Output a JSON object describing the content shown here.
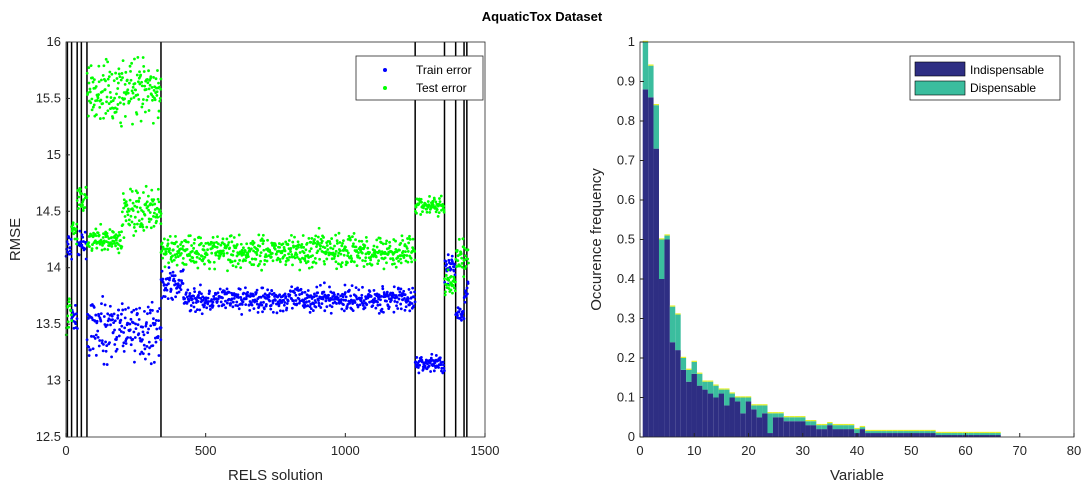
{
  "figure": {
    "title": "AquaticTox Dataset"
  },
  "chart_data": [
    {
      "type": "scatter",
      "xlabel": "RELS solution",
      "ylabel": "RMSE",
      "xlim": [
        0,
        1500
      ],
      "ylim": [
        12.5,
        16
      ],
      "xticks": [
        0,
        500,
        1000,
        1500
      ],
      "yticks": [
        12.5,
        13,
        13.5,
        14,
        14.5,
        15,
        15.5,
        16
      ],
      "legend_position": "top-right",
      "vertical_lines_x": [
        5,
        20,
        40,
        55,
        75,
        340,
        1250,
        1355,
        1395,
        1425,
        1435
      ],
      "series": [
        {
          "name": "Train error",
          "color": "#0000ff",
          "segments": [
            {
              "x": [
                0,
                20
              ],
              "center": 14.15,
              "spread": 0.25
            },
            {
              "x": [
                20,
                40
              ],
              "center": 13.55,
              "spread": 0.15
            },
            {
              "x": [
                40,
                75
              ],
              "center": 14.2,
              "spread": 0.15
            },
            {
              "x": [
                75,
                340
              ],
              "center": 13.45,
              "spread": 0.35
            },
            {
              "x": [
                340,
                420
              ],
              "center": 13.85,
              "spread": 0.2
            },
            {
              "x": [
                420,
                1250
              ],
              "center": 13.72,
              "spread": 0.16
            },
            {
              "x": [
                1250,
                1355
              ],
              "center": 13.15,
              "spread": 0.12
            },
            {
              "x": [
                1355,
                1395
              ],
              "center": 14.0,
              "spread": 0.2
            },
            {
              "x": [
                1395,
                1425
              ],
              "center": 13.6,
              "spread": 0.1
            },
            {
              "x": [
                1425,
                1440
              ],
              "center": 13.8,
              "spread": 0.2
            }
          ]
        },
        {
          "name": "Test error",
          "color": "#00ff00",
          "segments": [
            {
              "x": [
                0,
                20
              ],
              "center": 13.6,
              "spread": 0.25
            },
            {
              "x": [
                20,
                40
              ],
              "center": 14.3,
              "spread": 0.2
            },
            {
              "x": [
                40,
                75
              ],
              "center": 14.6,
              "spread": 0.2
            },
            {
              "x": [
                75,
                200
              ],
              "center": 14.25,
              "spread": 0.15
            },
            {
              "x": [
                75,
                340
              ],
              "center": 15.55,
              "spread": 0.4
            },
            {
              "x": [
                200,
                340
              ],
              "center": 14.5,
              "spread": 0.3
            },
            {
              "x": [
                340,
                1250
              ],
              "center": 14.15,
              "spread": 0.22
            },
            {
              "x": [
                1250,
                1355
              ],
              "center": 14.55,
              "spread": 0.12
            },
            {
              "x": [
                1355,
                1395
              ],
              "center": 13.85,
              "spread": 0.15
            },
            {
              "x": [
                1395,
                1440
              ],
              "center": 14.1,
              "spread": 0.25
            }
          ]
        }
      ]
    },
    {
      "type": "bar",
      "stacked": true,
      "xlabel": "Variable",
      "ylabel": "Occurence frequency",
      "xlim": [
        0,
        80
      ],
      "ylim": [
        0,
        1
      ],
      "xticks": [
        0,
        10,
        20,
        30,
        40,
        50,
        60,
        70,
        80
      ],
      "yticks": [
        0,
        0.1,
        0.2,
        0.3,
        0.4,
        0.5,
        0.6,
        0.7,
        0.8,
        0.9,
        1
      ],
      "legend_position": "top-right",
      "x": [
        1,
        2,
        3,
        4,
        5,
        6,
        7,
        8,
        9,
        10,
        11,
        12,
        13,
        14,
        15,
        16,
        17,
        18,
        19,
        20,
        21,
        22,
        23,
        24,
        25,
        26,
        27,
        28,
        29,
        30,
        31,
        32,
        33,
        34,
        35,
        36,
        37,
        38,
        39,
        40,
        41,
        42,
        43,
        44,
        45,
        46,
        47,
        48,
        49,
        50,
        51,
        52,
        53,
        54,
        55,
        56,
        57,
        58,
        59,
        60,
        61,
        62,
        63,
        64,
        65,
        66,
        67,
        68,
        69,
        70,
        71,
        72,
        73,
        74,
        75,
        76,
        77,
        78,
        79,
        80
      ],
      "series": [
        {
          "name": "Indispensable",
          "color": "#2e2e83",
          "values": [
            0.88,
            0.86,
            0.73,
            0.4,
            0.5,
            0.24,
            0.22,
            0.17,
            0.14,
            0.16,
            0.13,
            0.12,
            0.11,
            0.1,
            0.11,
            0.08,
            0.1,
            0.09,
            0.06,
            0.09,
            0.07,
            0.05,
            0.06,
            0.01,
            0.05,
            0.05,
            0.04,
            0.04,
            0.04,
            0.04,
            0.03,
            0.03,
            0.02,
            0.02,
            0.03,
            0.02,
            0.02,
            0.02,
            0.02,
            0.01,
            0.02,
            0.01,
            0.01,
            0.01,
            0.01,
            0.01,
            0.01,
            0.01,
            0.01,
            0.01,
            0.01,
            0.01,
            0.01,
            0.01,
            0.005,
            0.005,
            0.005,
            0.005,
            0.005,
            0.005,
            0.005,
            0.005,
            0.005,
            0.005,
            0.005,
            0.005,
            0,
            0,
            0,
            0,
            0,
            0,
            0,
            0,
            0,
            0,
            0,
            0,
            0,
            0
          ]
        },
        {
          "name": "Dispensable",
          "color": "#3bbd9e",
          "values": [
            0.12,
            0.08,
            0.11,
            0.1,
            0.01,
            0.09,
            0.09,
            0.03,
            0.03,
            0.03,
            0.03,
            0.02,
            0.03,
            0.03,
            0.01,
            0.04,
            0.01,
            0.01,
            0.04,
            0.01,
            0.01,
            0.03,
            0.02,
            0.05,
            0.01,
            0.01,
            0.01,
            0.01,
            0.01,
            0.01,
            0.01,
            0.01,
            0.01,
            0.01,
            0.005,
            0.01,
            0.01,
            0.01,
            0.01,
            0.01,
            0.005,
            0.005,
            0.005,
            0.005,
            0.005,
            0.005,
            0.005,
            0.005,
            0.005,
            0.005,
            0.005,
            0.005,
            0.005,
            0.005,
            0.005,
            0.005,
            0.005,
            0.005,
            0.005,
            0.005,
            0.005,
            0.005,
            0.005,
            0.005,
            0.005,
            0.005,
            0,
            0,
            0,
            0,
            0,
            0,
            0,
            0,
            0,
            0,
            0,
            0,
            0,
            0
          ]
        }
      ]
    }
  ]
}
